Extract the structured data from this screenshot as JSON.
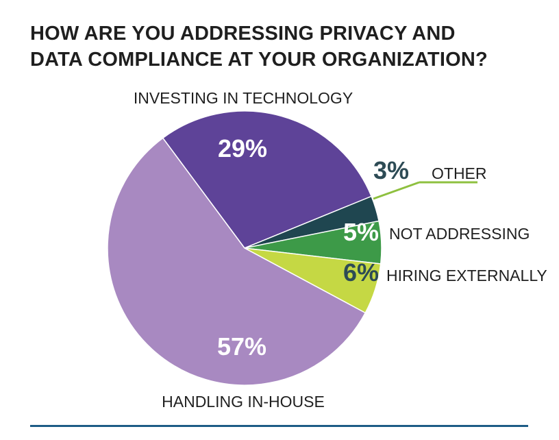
{
  "title": {
    "line1": "HOW ARE YOU ADDRESSING PRIVACY AND",
    "line2": "DATA COMPLIANCE AT YOUR ORGANIZATION?"
  },
  "chart_data": {
    "type": "pie",
    "title": "HOW ARE YOU ADDRESSING PRIVACY AND DATA COMPLIANCE AT YOUR ORGANIZATION?",
    "unit": "%",
    "slices": [
      {
        "label": "INVESTING IN TECHNOLOGY",
        "value": 29,
        "value_label": "29%",
        "color": "#5e4398"
      },
      {
        "label": "OTHER",
        "value": 3,
        "value_label": "3%",
        "color": "#1f4650"
      },
      {
        "label": "NOT ADDRESSING",
        "value": 5,
        "value_label": "5%",
        "color": "#3d9a48"
      },
      {
        "label": "HIRING EXTERNALLY",
        "value": 6,
        "value_label": "6%",
        "color": "#c5d844"
      },
      {
        "label": "HANDLING IN-HOUSE",
        "value": 57,
        "value_label": "57%",
        "color": "#a889c1"
      }
    ],
    "colors": {
      "title": "#1f1f1f",
      "category_label": "#1f1f1f",
      "inside_value_label": "#ffffff",
      "dark_value_label": "#2d4b55",
      "leader_line": "#8ec03f",
      "bottom_rule": "#1d5c86"
    }
  }
}
